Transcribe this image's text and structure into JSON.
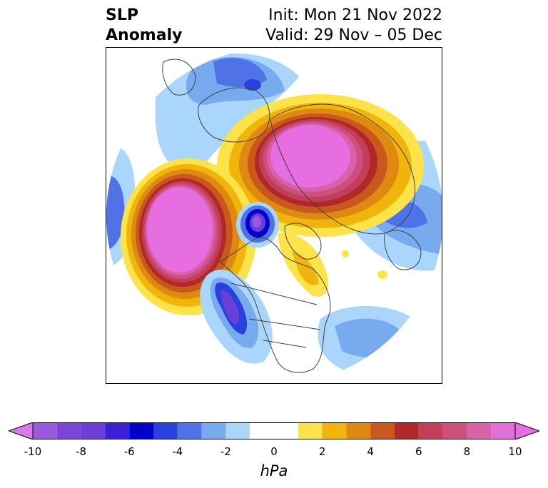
{
  "title": {
    "left_line1": "SLP",
    "left_line2": "Anomaly",
    "right_line1": "Init: Mon 21 Nov 2022",
    "right_line2": "Valid: 29 Nov – 05 Dec"
  },
  "colorbar": {
    "unit": "hPa",
    "ticks": [
      "-10",
      "-8",
      "-6",
      "-4",
      "-2",
      "0",
      "2",
      "4",
      "6",
      "8",
      "10"
    ],
    "bins": [
      {
        "from": -10,
        "to": -9,
        "color": "#9b59e0"
      },
      {
        "from": -9,
        "to": -8,
        "color": "#7a45d8"
      },
      {
        "from": -8,
        "to": -7,
        "color": "#6a3fd6"
      },
      {
        "from": -7,
        "to": -6,
        "color": "#3c1fd8"
      },
      {
        "from": -6,
        "to": -5,
        "color": "#0000cd"
      },
      {
        "from": -5,
        "to": -4,
        "color": "#2a40dc"
      },
      {
        "from": -4,
        "to": -3,
        "color": "#4f72e6"
      },
      {
        "from": -3,
        "to": -2,
        "color": "#78aaf0"
      },
      {
        "from": -2,
        "to": -1,
        "color": "#a9d6fa"
      },
      {
        "from": -1,
        "to": 1,
        "color": "#ffffff"
      },
      {
        "from": 1,
        "to": 2,
        "color": "#fde34a"
      },
      {
        "from": 2,
        "to": 3,
        "color": "#f0b40a"
      },
      {
        "from": 3,
        "to": 4,
        "color": "#de8a12"
      },
      {
        "from": 4,
        "to": 5,
        "color": "#c9581c"
      },
      {
        "from": 5,
        "to": 6,
        "color": "#b02828"
      },
      {
        "from": 6,
        "to": 7,
        "color": "#c23e5a"
      },
      {
        "from": 7,
        "to": 8,
        "color": "#cc4f7e"
      },
      {
        "from": 8,
        "to": 9,
        "color": "#d862a8"
      },
      {
        "from": 9,
        "to": 10,
        "color": "#e070d8"
      }
    ],
    "extend_low_color": "#d77be8",
    "extend_high_color": "#e66ee0"
  },
  "map": {
    "projection": "north-polar-stereographic",
    "field": "sea level pressure anomaly",
    "features": [
      {
        "name": "aleutian-high",
        "sign": "positive",
        "peak_hpa": 10
      },
      {
        "name": "eurasian-arctic-high",
        "sign": "positive",
        "peak_hpa": 10
      },
      {
        "name": "hudson-bay-low",
        "sign": "negative",
        "peak_hpa": -7
      },
      {
        "name": "western-us-low",
        "sign": "negative",
        "peak_hpa": -6
      },
      {
        "name": "scandinavian-low",
        "sign": "negative",
        "peak_hpa": -5
      },
      {
        "name": "siberian-low",
        "sign": "negative",
        "peak_hpa": -4
      },
      {
        "name": "north-atlantic-low",
        "sign": "negative",
        "peak_hpa": -3
      }
    ]
  }
}
